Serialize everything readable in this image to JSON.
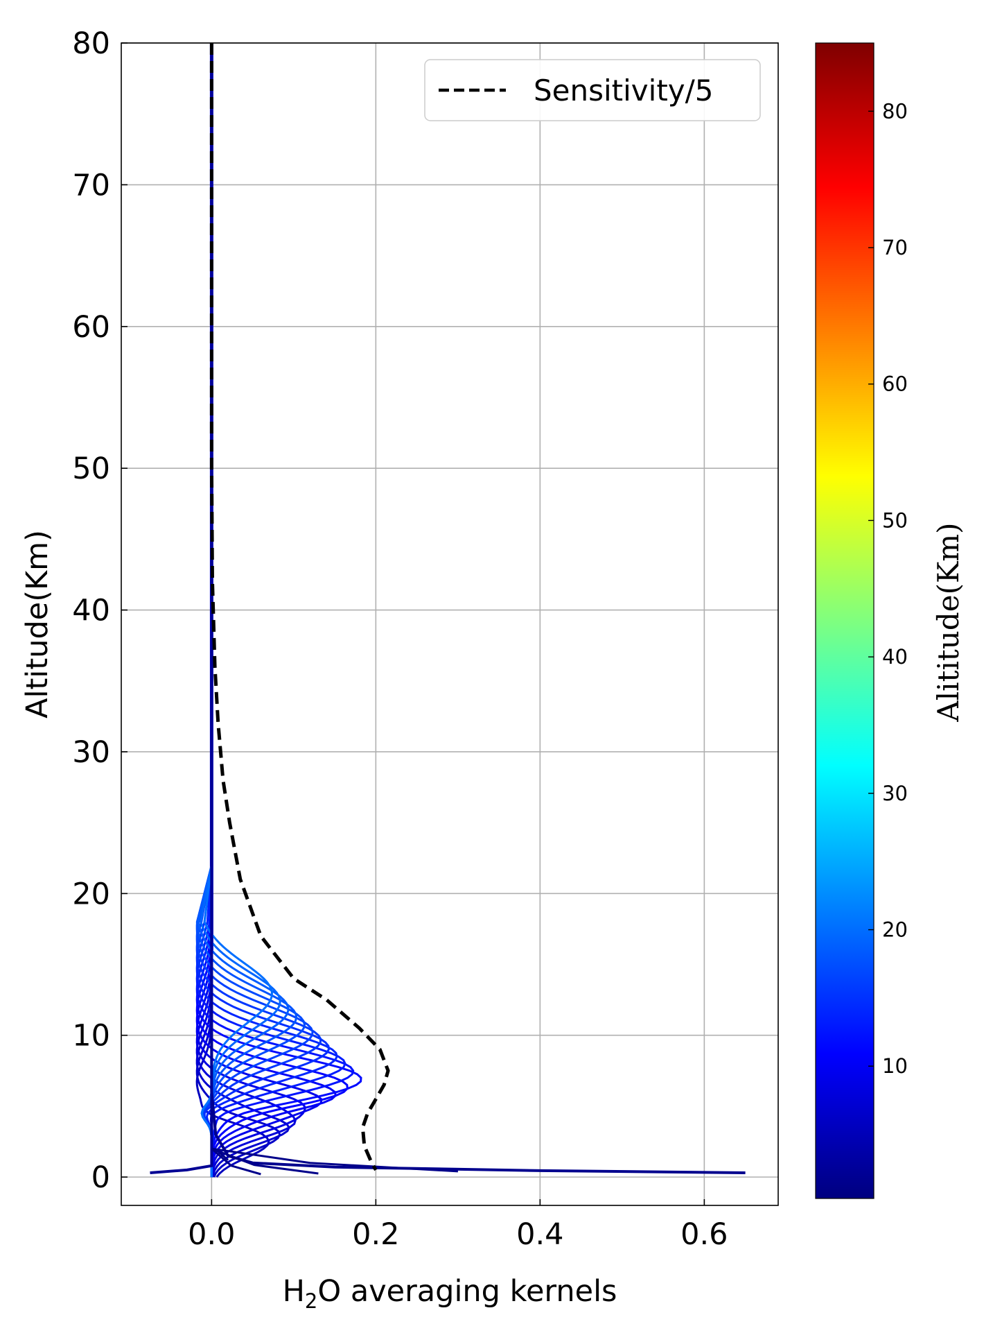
{
  "chart_data": {
    "type": "line",
    "xlabel": {
      "prefix": "H",
      "sub": "2",
      "suffix": "O averaging kernels"
    },
    "ylabel": "Altitude(Km)",
    "xlim": [
      -0.11,
      0.69
    ],
    "ylim": [
      -2,
      80
    ],
    "xticks": [
      0.0,
      0.2,
      0.4,
      0.6
    ],
    "xtick_labels": [
      "0.0",
      "0.2",
      "0.4",
      "0.6"
    ],
    "yticks": [
      0,
      10,
      20,
      30,
      40,
      50,
      60,
      70,
      80
    ],
    "ytick_labels": [
      "0",
      "10",
      "20",
      "30",
      "40",
      "50",
      "60",
      "70",
      "80"
    ],
    "grid": true,
    "legend": {
      "position": "top-right",
      "entries": [
        {
          "label": "Sensitivity/5",
          "style": "dashed",
          "color": "#000000"
        }
      ]
    },
    "sensitivity_series": {
      "name": "Sensitivity/5",
      "points": [
        [
          0.0,
          80
        ],
        [
          0.0,
          50
        ],
        [
          0.001,
          42
        ],
        [
          0.004,
          36
        ],
        [
          0.008,
          32
        ],
        [
          0.014,
          28
        ],
        [
          0.022,
          25
        ],
        [
          0.035,
          21
        ],
        [
          0.06,
          17
        ],
        [
          0.1,
          14
        ],
        [
          0.14,
          12.5
        ],
        [
          0.18,
          10.5
        ],
        [
          0.205,
          9
        ],
        [
          0.215,
          7.5
        ],
        [
          0.21,
          6.5
        ],
        [
          0.2,
          5.5
        ],
        [
          0.19,
          4.5
        ],
        [
          0.184,
          3.5
        ],
        [
          0.186,
          2.2
        ],
        [
          0.195,
          1.0
        ],
        [
          0.2,
          0.5
        ]
      ]
    },
    "averaging_kernels": {
      "description_levels_km": [
        0.3,
        1,
        2,
        3,
        4,
        5,
        6,
        7,
        8,
        9,
        10,
        11,
        12,
        13,
        14
      ],
      "near_surface_kernel": [
        [
          0.65,
          0.3
        ],
        [
          0.4,
          0.45
        ],
        [
          0.15,
          0.7
        ],
        [
          0.05,
          1.0
        ],
        [
          0.02,
          1.5
        ],
        [
          0.005,
          3
        ],
        [
          0.0,
          6
        ],
        [
          0.0,
          80
        ]
      ],
      "negative_lobe_kernel": [
        [
          -0.075,
          0.3
        ],
        [
          -0.03,
          0.5
        ],
        [
          0.0,
          0.8
        ],
        [
          0.0,
          80
        ]
      ]
    },
    "colorbar": {
      "label": "Alititude(Km)",
      "range": [
        0.3,
        85
      ],
      "ticks": [
        10,
        20,
        30,
        40,
        50,
        60,
        70,
        80
      ],
      "tick_labels": [
        "10",
        "20",
        "30",
        "40",
        "50",
        "60",
        "70",
        "80"
      ],
      "colormap": "jet",
      "colors": [
        "#00007f",
        "#0000ff",
        "#007fff",
        "#00ffff",
        "#7fff7f",
        "#ffff00",
        "#ff7f00",
        "#ff0000",
        "#7f0000"
      ]
    }
  }
}
